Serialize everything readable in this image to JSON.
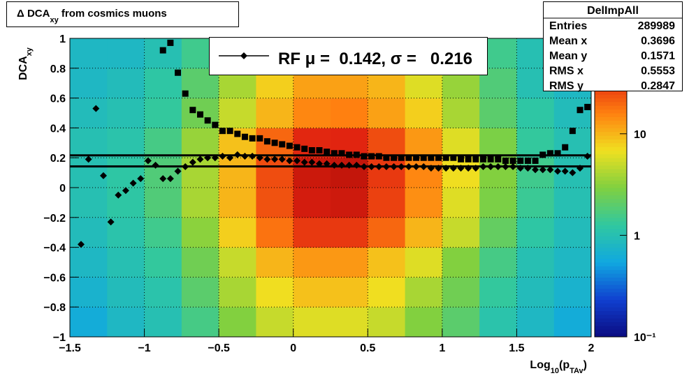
{
  "chart_data": {
    "type": "heatmap_profile",
    "title": {
      "main": "Δ DCA",
      "sub": "xy",
      "rest": " from cosmics muons"
    },
    "xlabel": {
      "main": "Log",
      "sub": "10",
      "rest": "(p",
      "sub2": "TAv",
      "end": ")"
    },
    "ylabel": {
      "main": "DCA",
      "sub": "xy"
    },
    "xlim": [
      -1.5,
      2
    ],
    "ylim": [
      -1,
      1
    ],
    "xticks": [
      {
        "value": -1.5,
        "label": "−1.5"
      },
      {
        "value": -1,
        "label": "−1"
      },
      {
        "value": -0.5,
        "label": "−0.5"
      },
      0,
      0.5,
      1,
      1.5,
      2
    ],
    "yticks": [
      {
        "value": -1,
        "label": "−1"
      },
      {
        "value": -0.8,
        "label": "−0.8"
      },
      {
        "value": -0.6,
        "label": "−0.6"
      },
      {
        "value": -0.4,
        "label": "−0.4"
      },
      {
        "value": -0.2,
        "label": "−0.2"
      },
      0,
      0.2,
      0.4,
      0.6,
      0.8,
      1
    ],
    "grid": true,
    "xbins": [
      -1.5,
      -1.25,
      -1,
      -0.75,
      -0.5,
      -0.25,
      0,
      0.25,
      0.5,
      0.75,
      1,
      1.25,
      1.5,
      1.75,
      2
    ],
    "ybins": [
      -1,
      -0.8,
      -0.6,
      -0.4,
      -0.2,
      0,
      0.2,
      0.4,
      0.6,
      0.8,
      1
    ],
    "z": [
      [
        0.6,
        0.8,
        1,
        1.6,
        3,
        5,
        6,
        6,
        5,
        3,
        2,
        1.1,
        0.8,
        0.6
      ],
      [
        0.7,
        0.9,
        1.1,
        2,
        4,
        7,
        9,
        9,
        7,
        4,
        2.5,
        1.3,
        0.9,
        0.7
      ],
      [
        0.8,
        1,
        1.3,
        2.5,
        5,
        10,
        13,
        13,
        9,
        6,
        3,
        1.6,
        1,
        0.8
      ],
      [
        0.9,
        1.1,
        1.5,
        3.2,
        8,
        18,
        30,
        30,
        20,
        10,
        5,
        2.2,
        1.2,
        0.9
      ],
      [
        1,
        1.2,
        1.8,
        4,
        10,
        24,
        42,
        44,
        28,
        14,
        6,
        2.8,
        1.4,
        1
      ],
      [
        1,
        1.2,
        1.8,
        4,
        10,
        25,
        45,
        48,
        30,
        15,
        7,
        3,
        1.5,
        1
      ],
      [
        1,
        1.1,
        1.6,
        3.5,
        9,
        20,
        35,
        36,
        25,
        13,
        6,
        2.8,
        1.3,
        1
      ],
      [
        0.9,
        1,
        1.3,
        2.5,
        5,
        10,
        15,
        16,
        12,
        8,
        4,
        2,
        1.2,
        0.9
      ],
      [
        0.8,
        0.9,
        1.2,
        2,
        4,
        8,
        12,
        12,
        10,
        6,
        3.5,
        1.8,
        1,
        0.8
      ],
      [
        0.8,
        0.8,
        1,
        1.5,
        3,
        6,
        9,
        10,
        8,
        5,
        3,
        1.5,
        1,
        0.8
      ]
    ],
    "zlim": [
      0.1,
      87
    ],
    "zlog": true,
    "zticks": [
      {
        "value": 0.1,
        "label": "10⁻¹"
      },
      1,
      10
    ],
    "colorscale": [
      "#0b0b80",
      "#1040d0",
      "#10a8e0",
      "#30c8a0",
      "#80d040",
      "#f0e020",
      "#ff8010",
      "#e02010",
      "#800000"
    ],
    "x": [
      -1.425,
      -1.375,
      -1.325,
      -1.275,
      -1.225,
      -1.175,
      -1.125,
      -1.075,
      -1.025,
      -0.975,
      -0.925,
      -0.875,
      -0.825,
      -0.775,
      -0.725,
      -0.675,
      -0.625,
      -0.575,
      -0.525,
      -0.475,
      -0.425,
      -0.375,
      -0.325,
      -0.275,
      -0.225,
      -0.175,
      -0.125,
      -0.075,
      -0.025,
      0.025,
      0.075,
      0.125,
      0.175,
      0.225,
      0.275,
      0.325,
      0.375,
      0.425,
      0.475,
      0.525,
      0.575,
      0.625,
      0.675,
      0.725,
      0.775,
      0.825,
      0.875,
      0.925,
      0.975,
      1.025,
      1.075,
      1.125,
      1.175,
      1.225,
      1.275,
      1.325,
      1.375,
      1.425,
      1.475,
      1.525,
      1.575,
      1.625,
      1.675,
      1.725,
      1.775,
      1.825,
      1.875,
      1.925,
      1.975
    ],
    "series": [
      {
        "marker": "square",
        "color": "#000000",
        "values": [
          null,
          null,
          null,
          null,
          null,
          null,
          null,
          null,
          null,
          null,
          null,
          0.92,
          0.97,
          0.77,
          0.63,
          0.52,
          0.49,
          0.45,
          0.42,
          0.38,
          0.38,
          0.36,
          0.34,
          0.33,
          0.33,
          0.31,
          0.3,
          0.29,
          0.28,
          0.27,
          0.26,
          0.25,
          0.25,
          0.24,
          0.23,
          0.23,
          0.22,
          0.22,
          0.21,
          0.21,
          0.21,
          0.2,
          0.2,
          0.2,
          0.2,
          0.2,
          0.2,
          0.2,
          0.2,
          0.2,
          0.2,
          0.19,
          0.19,
          0.19,
          0.19,
          0.19,
          0.19,
          0.18,
          0.18,
          0.18,
          0.18,
          0.18,
          0.22,
          0.23,
          0.23,
          0.27,
          0.38,
          0.52,
          0.54
        ]
      },
      {
        "marker": "diamond",
        "color": "#000000",
        "values": [
          -0.38,
          0.19,
          0.53,
          0.08,
          -0.23,
          -0.05,
          -0.02,
          0.03,
          0.06,
          0.18,
          0.15,
          0.06,
          0.06,
          0.11,
          0.14,
          0.17,
          0.19,
          0.2,
          0.2,
          0.21,
          0.2,
          0.22,
          0.21,
          0.21,
          0.2,
          0.19,
          0.19,
          0.19,
          0.18,
          0.18,
          0.17,
          0.17,
          0.16,
          0.16,
          0.15,
          0.15,
          0.15,
          0.15,
          0.14,
          0.14,
          0.14,
          0.14,
          0.14,
          0.14,
          0.14,
          0.14,
          0.14,
          0.13,
          0.13,
          0.13,
          0.13,
          0.13,
          0.13,
          0.13,
          0.14,
          0.14,
          0.14,
          0.14,
          0.14,
          0.13,
          0.13,
          0.12,
          0.12,
          0.12,
          0.11,
          0.11,
          0.1,
          0.13,
          0.21
        ]
      }
    ],
    "hlines": [
      0.142,
      0.216
    ],
    "legend": "RF μ =  0.142, σ =   0.216",
    "stats": {
      "title": "DelImpAll",
      "rows": [
        {
          "label": "Entries",
          "value": 289989
        },
        {
          "label": "Mean x",
          "value": 0.3696
        },
        {
          "label": "Mean y",
          "value": 0.1571
        },
        {
          "label": "RMS x",
          "value": 0.5553
        },
        {
          "label": "RMS y",
          "value": 0.2847
        }
      ]
    }
  }
}
